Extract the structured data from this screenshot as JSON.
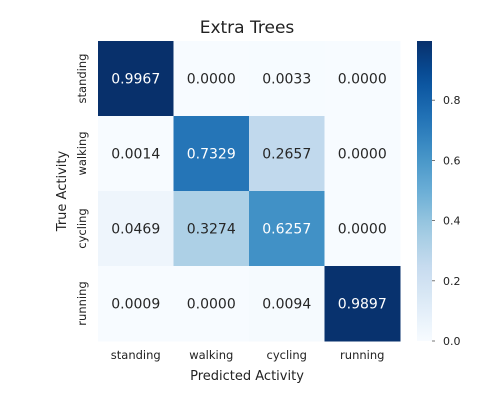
{
  "chart_data": {
    "type": "heatmap",
    "title": "Extra Trees",
    "xlabel": "Predicted Activity",
    "ylabel": "True Activity",
    "x_categories": [
      "standing",
      "walking",
      "cycling",
      "running"
    ],
    "y_categories": [
      "standing",
      "walking",
      "cycling",
      "running"
    ],
    "values": [
      [
        0.9967,
        0.0,
        0.0033,
        0.0
      ],
      [
        0.0014,
        0.7329,
        0.2657,
        0.0
      ],
      [
        0.0469,
        0.3274,
        0.6257,
        0.0
      ],
      [
        0.0009,
        0.0,
        0.0094,
        0.9897
      ]
    ],
    "value_labels": [
      [
        "0.9967",
        "0.0000",
        "0.0033",
        "0.0000"
      ],
      [
        "0.0014",
        "0.7329",
        "0.2657",
        "0.0000"
      ],
      [
        "0.0469",
        "0.3274",
        "0.6257",
        "0.0000"
      ],
      [
        "0.0009",
        "0.0000",
        "0.0094",
        "0.9897"
      ]
    ],
    "colormap": "Blues",
    "colorbar": {
      "range": [
        0,
        0.9967
      ],
      "ticks": [
        0.0,
        0.2,
        0.4,
        0.6,
        0.8
      ],
      "tick_labels": [
        "0.0",
        "0.2",
        "0.4",
        "0.6",
        "0.8"
      ]
    },
    "colors": {
      "low": "#f7fbff",
      "high": "#08306b",
      "text_dark": "#262626",
      "text_light": "#ffffff"
    }
  }
}
